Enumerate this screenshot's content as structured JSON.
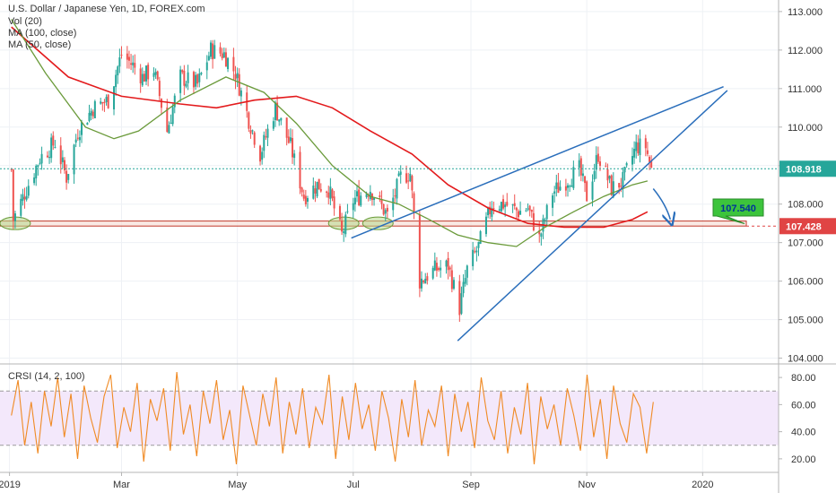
{
  "legend": {
    "symbol_title": "U.S. Dollar / Japanese Yen, 1D, FOREX.com",
    "volume": "Vol (20)",
    "ma100": "MA (100, close)",
    "ma50": "MA (50, close)"
  },
  "oscillator": {
    "title": "CRSI (14, 2, 100)",
    "upper_band": 70,
    "lower_band": 30
  },
  "colors": {
    "up_candle": "#26a69a",
    "down_candle": "#ef5350",
    "ma100": "#e31a1c",
    "ma50": "#6a9a3a",
    "trendline": "#2a6ebb",
    "last_price": "#26a69a",
    "support_tag": "#e04444",
    "target_tag": "#3cc43c",
    "crsi": "#f08a24",
    "crsi_band": "#f3e8fb"
  },
  "price_tags": {
    "last_price": "108.918",
    "support_price": "107.428",
    "target_label": "107.540"
  },
  "chart_data": [
    {
      "type": "candlestick",
      "title": "U.S. Dollar / Japanese Yen, 1D, FOREX.com",
      "x_tick_labels": [
        "2019",
        "Mar",
        "May",
        "Jul",
        "Sep",
        "Nov",
        "2020"
      ],
      "y_tick_labels": [
        "104.000",
        "105.000",
        "106.000",
        "107.000",
        "108.000",
        "109.000",
        "110.000",
        "111.000",
        "112.000",
        "113.000"
      ],
      "ylim": [
        103.85,
        113.3
      ],
      "x_range": [
        "2018-12-27",
        "2020-02-10"
      ],
      "close_path": [
        [
          "2019-01-02",
          108.9
        ],
        [
          "2019-01-03",
          107.6
        ],
        [
          "2019-01-10",
          108.4
        ],
        [
          "2019-01-17",
          109.2
        ],
        [
          "2019-01-25",
          109.6
        ],
        [
          "2019-01-31",
          108.7
        ],
        [
          "2019-02-06",
          109.9
        ],
        [
          "2019-02-14",
          110.5
        ],
        [
          "2019-02-22",
          110.7
        ],
        [
          "2019-03-01",
          111.9
        ],
        [
          "2019-03-07",
          111.6
        ],
        [
          "2019-03-12",
          111.3
        ],
        [
          "2019-03-18",
          111.5
        ],
        [
          "2019-03-25",
          109.9
        ],
        [
          "2019-04-01",
          111.3
        ],
        [
          "2019-04-10",
          111.1
        ],
        [
          "2019-04-17",
          112.0
        ],
        [
          "2019-04-24",
          111.9
        ],
        [
          "2019-04-30",
          111.4
        ],
        [
          "2019-05-07",
          110.2
        ],
        [
          "2019-05-13",
          109.3
        ],
        [
          "2019-05-21",
          110.5
        ],
        [
          "2019-05-29",
          109.5
        ],
        [
          "2019-06-05",
          108.2
        ],
        [
          "2019-06-12",
          108.5
        ],
        [
          "2019-06-18",
          108.4
        ],
        [
          "2019-06-25",
          107.2
        ],
        [
          "2019-07-01",
          108.1
        ],
        [
          "2019-07-10",
          108.4
        ],
        [
          "2019-07-19",
          107.7
        ],
        [
          "2019-07-26",
          108.7
        ],
        [
          "2019-07-31",
          108.8
        ],
        [
          "2019-08-05",
          106.0
        ],
        [
          "2019-08-13",
          106.3
        ],
        [
          "2019-08-20",
          106.4
        ],
        [
          "2019-08-26",
          105.3
        ],
        [
          "2019-08-30",
          106.3
        ],
        [
          "2019-09-05",
          106.9
        ],
        [
          "2019-09-12",
          108.0
        ],
        [
          "2019-09-19",
          108.0
        ],
        [
          "2019-09-26",
          107.8
        ],
        [
          "2019-10-01",
          107.9
        ],
        [
          "2019-10-07",
          107.1
        ],
        [
          "2019-10-14",
          108.3
        ],
        [
          "2019-10-21",
          108.6
        ],
        [
          "2019-10-28",
          108.9
        ],
        [
          "2019-11-01",
          108.2
        ],
        [
          "2019-11-07",
          109.3
        ],
        [
          "2019-11-14",
          108.4
        ],
        [
          "2019-11-20",
          108.6
        ],
        [
          "2019-11-27",
          109.5
        ],
        [
          "2019-12-02",
          109.5
        ],
        [
          "2019-12-05",
          108.9
        ]
      ],
      "ma100": [
        [
          "2019-01-02",
          112.6
        ],
        [
          "2019-02-01",
          111.3
        ],
        [
          "2019-03-01",
          110.8
        ],
        [
          "2019-04-01",
          110.6
        ],
        [
          "2019-04-20",
          110.5
        ],
        [
          "2019-05-10",
          110.7
        ],
        [
          "2019-06-01",
          110.8
        ],
        [
          "2019-06-20",
          110.5
        ],
        [
          "2019-07-10",
          109.9
        ],
        [
          "2019-08-01",
          109.3
        ],
        [
          "2019-08-20",
          108.5
        ],
        [
          "2019-09-10",
          107.9
        ],
        [
          "2019-10-01",
          107.5
        ],
        [
          "2019-10-20",
          107.4
        ],
        [
          "2019-11-10",
          107.4
        ],
        [
          "2019-11-25",
          107.6
        ],
        [
          "2019-12-03",
          107.8
        ]
      ],
      "ma50": [
        [
          "2019-01-02",
          112.8
        ],
        [
          "2019-01-20",
          111.4
        ],
        [
          "2019-02-10",
          110.0
        ],
        [
          "2019-02-25",
          109.7
        ],
        [
          "2019-03-10",
          109.9
        ],
        [
          "2019-04-01",
          110.7
        ],
        [
          "2019-04-25",
          111.3
        ],
        [
          "2019-05-15",
          110.9
        ],
        [
          "2019-06-01",
          110.1
        ],
        [
          "2019-06-20",
          109.0
        ],
        [
          "2019-07-10",
          108.2
        ],
        [
          "2019-07-25",
          108.0
        ],
        [
          "2019-08-10",
          107.6
        ],
        [
          "2019-08-25",
          107.2
        ],
        [
          "2019-09-10",
          107.0
        ],
        [
          "2019-09-25",
          106.9
        ],
        [
          "2019-10-10",
          107.4
        ],
        [
          "2019-10-25",
          107.8
        ],
        [
          "2019-11-10",
          108.2
        ],
        [
          "2019-11-25",
          108.5
        ],
        [
          "2019-12-03",
          108.6
        ]
      ],
      "wedge_lines": [
        {
          "from": [
            "2019-06-30",
            107.12
          ],
          "to": [
            "2020-01-12",
            111.05
          ]
        },
        {
          "from": [
            "2019-08-25",
            104.45
          ],
          "to": [
            "2020-01-14",
            110.95
          ]
        }
      ],
      "support_zone": {
        "from": "2018-12-27",
        "to": "2020-01-24",
        "low": 107.43,
        "high": 107.56
      },
      "support_ellipses": [
        {
          "date": "2019-01-04",
          "price": 107.5
        },
        {
          "date": "2019-06-26",
          "price": 107.5
        },
        {
          "date": "2019-07-14",
          "price": 107.5
        }
      ],
      "forecast_arrow": {
        "from": [
          "2019-12-06",
          108.4
        ],
        "to": [
          "2019-12-15",
          107.6
        ]
      }
    },
    {
      "type": "line",
      "title": "CRSI (14, 2, 100)",
      "y_tick_labels": [
        "20.00",
        "40.00",
        "60.00",
        "80.00"
      ],
      "ylim": [
        10,
        90
      ],
      "band": [
        30,
        70
      ],
      "x_range": [
        "2019-01-02",
        "2019-12-06"
      ],
      "values": [
        52,
        78,
        30,
        62,
        24,
        70,
        44,
        80,
        36,
        68,
        20,
        74,
        50,
        32,
        66,
        82,
        28,
        58,
        40,
        76,
        18,
        64,
        48,
        72,
        26,
        84,
        38,
        60,
        22,
        70,
        46,
        78,
        34,
        56,
        16,
        74,
        52,
        30,
        68,
        44,
        80,
        24,
        62,
        38,
        72,
        28,
        58,
        46,
        82,
        20,
        66,
        34,
        76,
        42,
        60,
        26,
        70,
        50,
        18,
        64,
        36,
        78,
        30,
        56,
        44,
        74,
        22,
        68,
        40,
        62,
        28,
        80,
        48,
        34,
        70,
        24,
        58,
        38,
        76,
        16,
        66,
        42,
        60,
        30,
        72,
        52,
        26,
        82,
        36,
        64,
        20,
        74,
        46,
        32,
        68,
        58,
        24,
        62
      ]
    }
  ]
}
